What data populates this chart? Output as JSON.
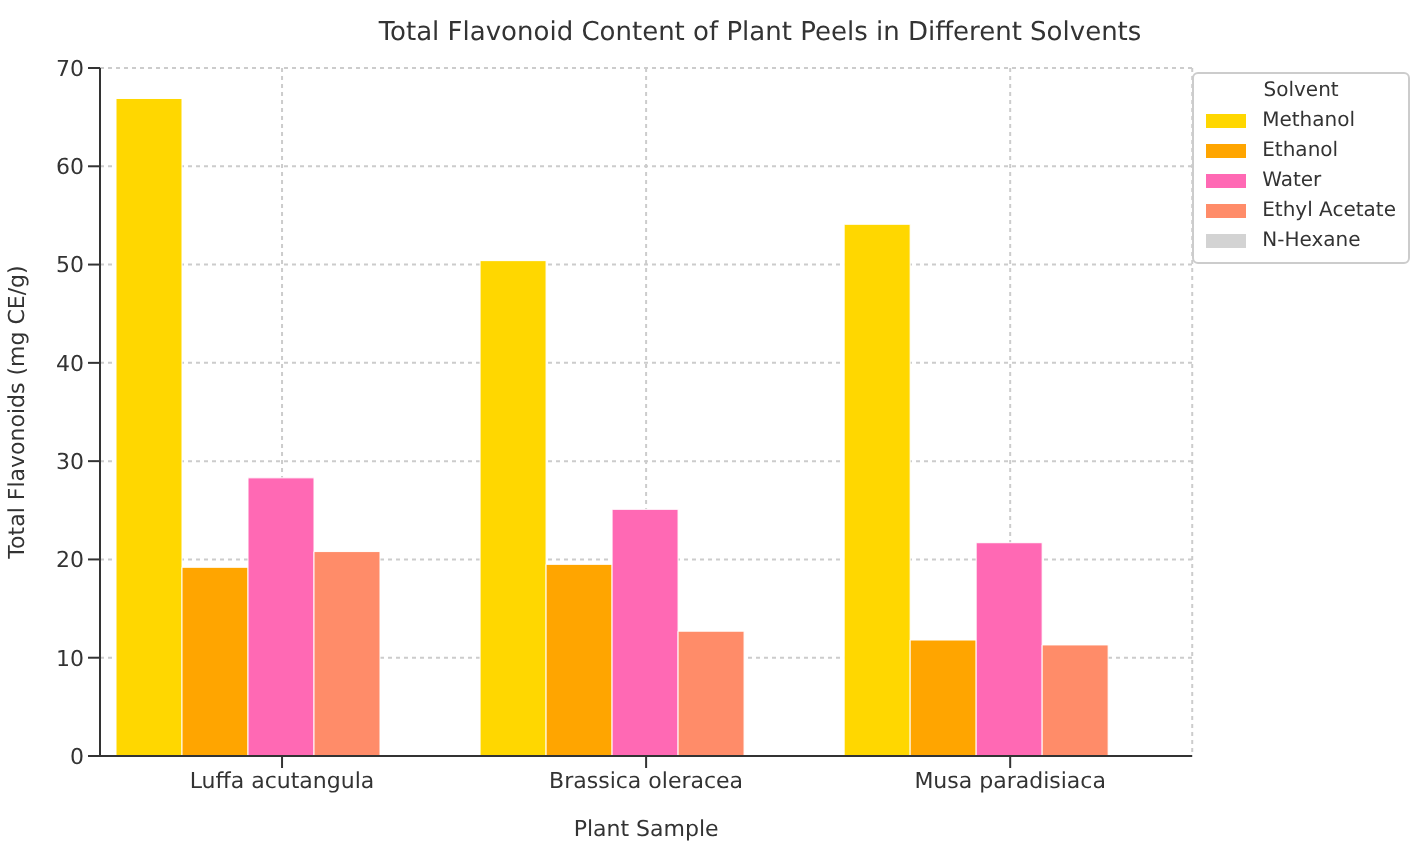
{
  "chart_data": {
    "type": "bar",
    "title": "Total Flavonoid Content of Plant Peels in Different Solvents",
    "xlabel": "Plant Sample",
    "ylabel": "Total Flavonoids (mg CE/g)",
    "legend_title": "Solvent",
    "categories": [
      "Luffa acutangula",
      "Brassica oleracea",
      "Musa paradisiaca"
    ],
    "series": [
      {
        "name": "Methanol",
        "color": "#ffd700",
        "values": [
          66.9,
          50.4,
          54.1
        ]
      },
      {
        "name": "Ethanol",
        "color": "#ffa500",
        "values": [
          19.2,
          19.5,
          11.8
        ]
      },
      {
        "name": "Water",
        "color": "#ff69b4",
        "values": [
          28.3,
          25.1,
          21.7
        ]
      },
      {
        "name": "Ethyl Acetate",
        "color": "#ff8c69",
        "values": [
          20.8,
          12.7,
          11.3
        ]
      },
      {
        "name": "N-Hexane",
        "color": "#d3d3d3",
        "values": [
          0,
          0,
          0
        ]
      }
    ],
    "ylim": [
      0,
      70
    ],
    "yticks": [
      0,
      10,
      20,
      30,
      40,
      50,
      60,
      70
    ],
    "grid": true,
    "legend": "top right"
  }
}
